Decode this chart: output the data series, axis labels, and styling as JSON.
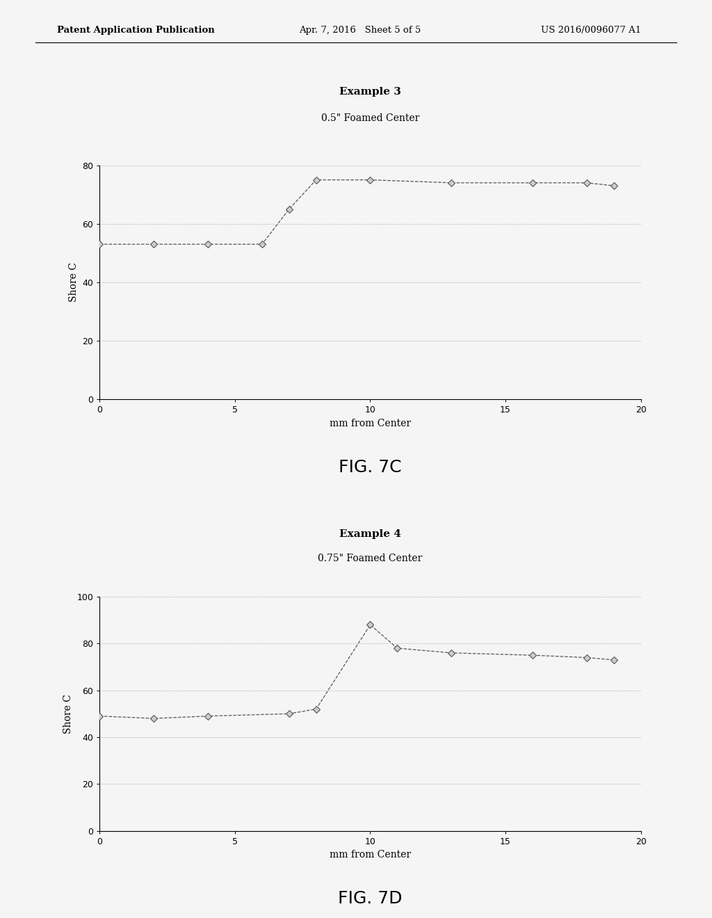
{
  "chart1": {
    "title1": "Example 3",
    "title2": "0.5\" Foamed Center",
    "x": [
      0,
      2,
      4,
      6,
      7,
      8,
      10,
      13,
      16,
      18,
      19
    ],
    "y": [
      53,
      53,
      53,
      53,
      65,
      75,
      75,
      74,
      74,
      74,
      73
    ],
    "xlabel": "mm from Center",
    "ylabel": "Shore C",
    "xlim": [
      0,
      20
    ],
    "ylim": [
      0,
      80
    ],
    "yticks": [
      0,
      20,
      40,
      60,
      80
    ],
    "xticks": [
      0,
      5,
      10,
      15,
      20
    ],
    "fig_label": "FIG. 7C"
  },
  "chart2": {
    "title1": "Example 4",
    "title2": "0.75\" Foamed Center",
    "x": [
      0,
      2,
      4,
      7,
      8,
      10,
      11,
      13,
      16,
      18,
      19
    ],
    "y": [
      49,
      48,
      49,
      50,
      52,
      88,
      78,
      76,
      75,
      74,
      73
    ],
    "xlabel": "mm from Center",
    "ylabel": "Shore C",
    "xlim": [
      0,
      20
    ],
    "ylim": [
      0,
      100
    ],
    "yticks": [
      0,
      20,
      40,
      60,
      80,
      100
    ],
    "xticks": [
      0,
      5,
      10,
      15,
      20
    ],
    "fig_label": "FIG. 7D"
  },
  "header_left": "Patent Application Publication",
  "header_center": "Apr. 7, 2016   Sheet 5 of 5",
  "header_right": "US 2016/0096077 A1",
  "line_color": "#555555",
  "marker_color": "#555555",
  "bg_color": "#f5f5f5",
  "grid_color": "#999999",
  "title_fontsize": 11,
  "subtitle_fontsize": 10,
  "axis_label_fontsize": 10,
  "tick_fontsize": 9,
  "fig_label_fontsize": 18,
  "header_fontsize": 9.5
}
